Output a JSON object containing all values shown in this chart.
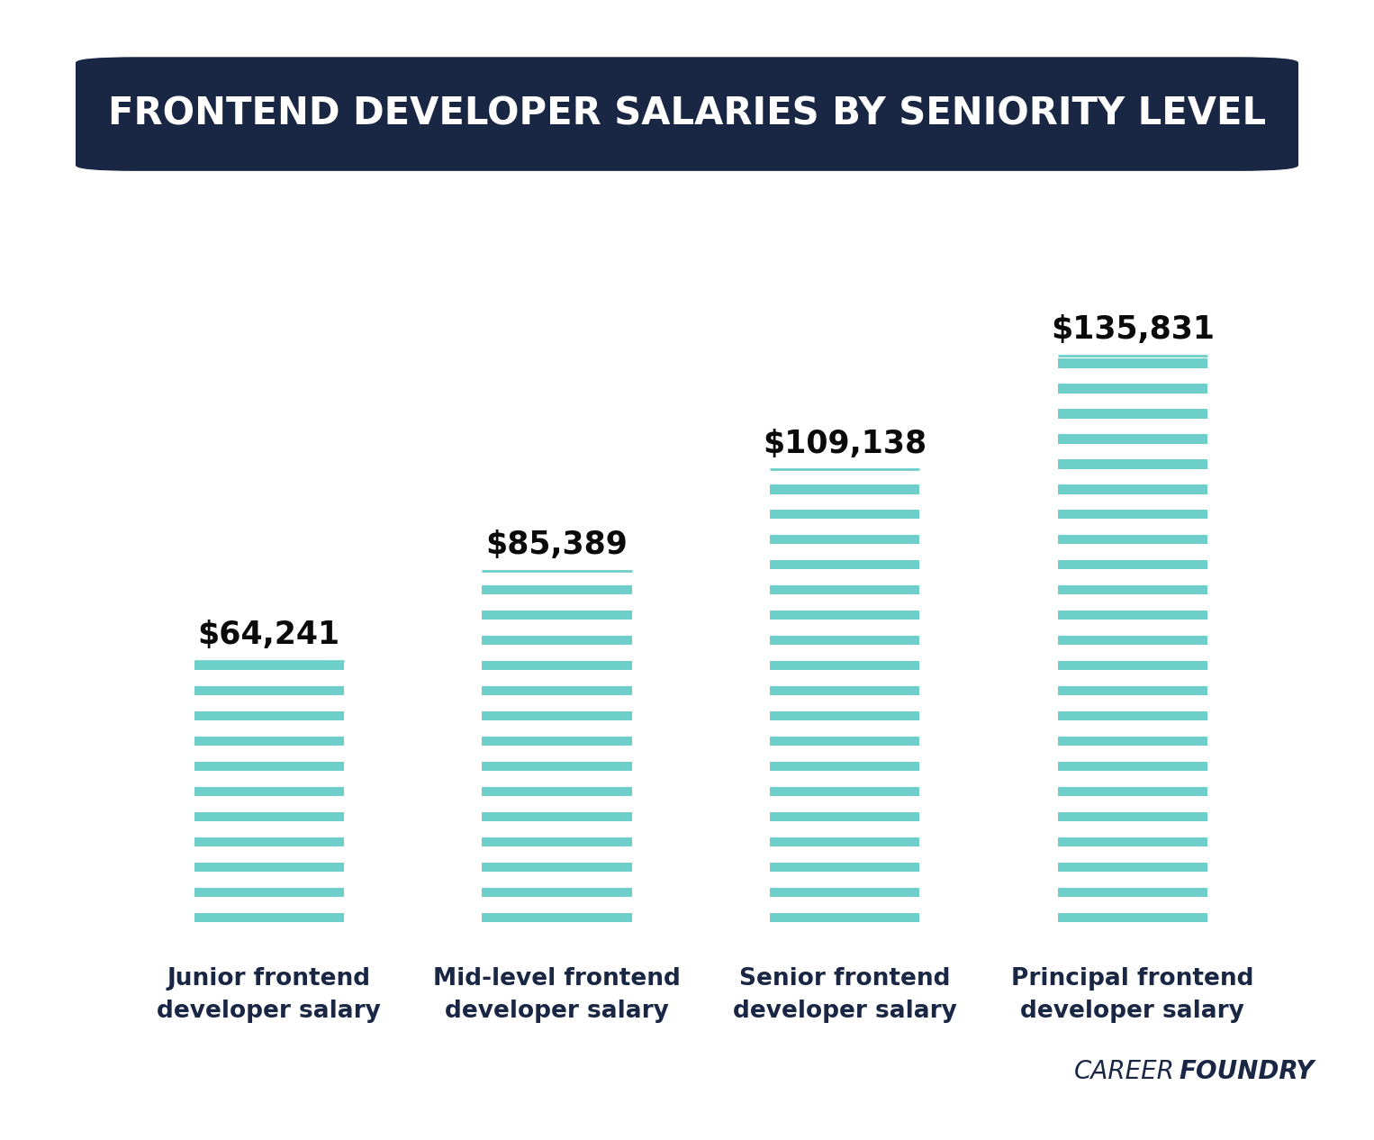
{
  "title": "FRONTEND DEVELOPER SALARIES BY SENIORITY LEVEL",
  "title_bg_color": "#1a2744",
  "title_text_color": "#ffffff",
  "categories": [
    "Junior frontend\ndeveloper salary",
    "Mid-level frontend\ndeveloper salary",
    "Senior frontend\ndeveloper salary",
    "Principal frontend\ndeveloper salary"
  ],
  "values": [
    64241,
    85389,
    109138,
    135831
  ],
  "value_labels": [
    "$64,241",
    "$85,389",
    "$109,138",
    "$135,831"
  ],
  "stripe_color": "#6ecfca",
  "background_color": "#ffffff",
  "label_color": "#1a2744",
  "value_label_color": "#0a0a0a",
  "brand_color": "#1a2744",
  "ylim": [
    0,
    155000
  ],
  "bar_width": 0.52,
  "num_stripes": 22,
  "stripe_thickness": 3.5
}
